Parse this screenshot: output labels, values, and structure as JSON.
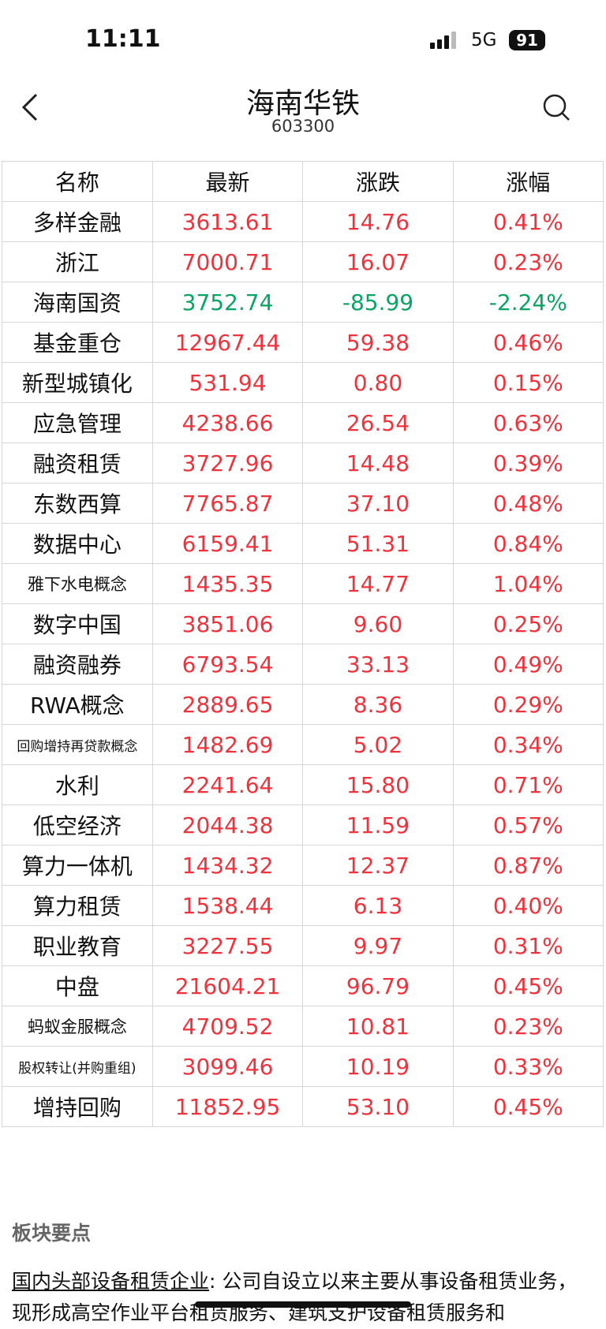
{
  "status_bar": {
    "time": "11:11",
    "network": "5G",
    "battery": "91"
  },
  "header": {
    "title": "海南华铁",
    "code": "603300"
  },
  "table": {
    "columns": [
      "名称",
      "最新",
      "涨跌",
      "涨幅"
    ],
    "rows": [
      [
        "多样金融",
        "3613.61",
        "14.76",
        "0.41%"
      ],
      [
        "浙江",
        "7000.71",
        "16.07",
        "0.23%"
      ],
      [
        "海南国资",
        "3752.74",
        "-85.99",
        "-2.24%"
      ],
      [
        "基金重仓",
        "12967.44",
        "59.38",
        "0.46%"
      ],
      [
        "新型城镇化",
        "531.94",
        "0.80",
        "0.15%"
      ],
      [
        "应急管理",
        "4238.66",
        "26.54",
        "0.63%"
      ],
      [
        "融资租赁",
        "3727.96",
        "14.48",
        "0.39%"
      ],
      [
        "东数西算",
        "7765.87",
        "37.10",
        "0.48%"
      ],
      [
        "数据中心",
        "6159.41",
        "51.31",
        "0.84%"
      ],
      [
        "雅下水电概念",
        "1435.35",
        "14.77",
        "1.04%"
      ],
      [
        "数字中国",
        "3851.06",
        "9.60",
        "0.25%"
      ],
      [
        "融资融券",
        "6793.54",
        "33.13",
        "0.49%"
      ],
      [
        "RWA概念",
        "2889.65",
        "8.36",
        "0.29%"
      ],
      [
        "回购增持再贷款概念",
        "1482.69",
        "5.02",
        "0.34%"
      ],
      [
        "水利",
        "2241.64",
        "15.80",
        "0.71%"
      ],
      [
        "低空经济",
        "2044.38",
        "11.59",
        "0.57%"
      ],
      [
        "算力一体机",
        "1434.32",
        "12.37",
        "0.87%"
      ],
      [
        "算力租赁",
        "1538.44",
        "6.13",
        "0.40%"
      ],
      [
        "职业教育",
        "3227.55",
        "9.97",
        "0.31%"
      ],
      [
        "中盘",
        "21604.21",
        "96.79",
        "0.45%"
      ],
      [
        "蚂蚁金服概念",
        "4709.52",
        "10.81",
        "0.23%"
      ],
      [
        "股权转让(并购重组)",
        "3099.46",
        "10.19",
        "0.33%"
      ],
      [
        "增持回购",
        "11852.95",
        "53.10",
        "0.45%"
      ]
    ]
  },
  "section": {
    "title": "板块要点",
    "highlight": "国内头部设备租赁企业",
    "text": ": 公司自设立以来主要从事设备租赁业务，现形成高空作业平台租赁服务、建筑支护设备租赁服务和"
  }
}
